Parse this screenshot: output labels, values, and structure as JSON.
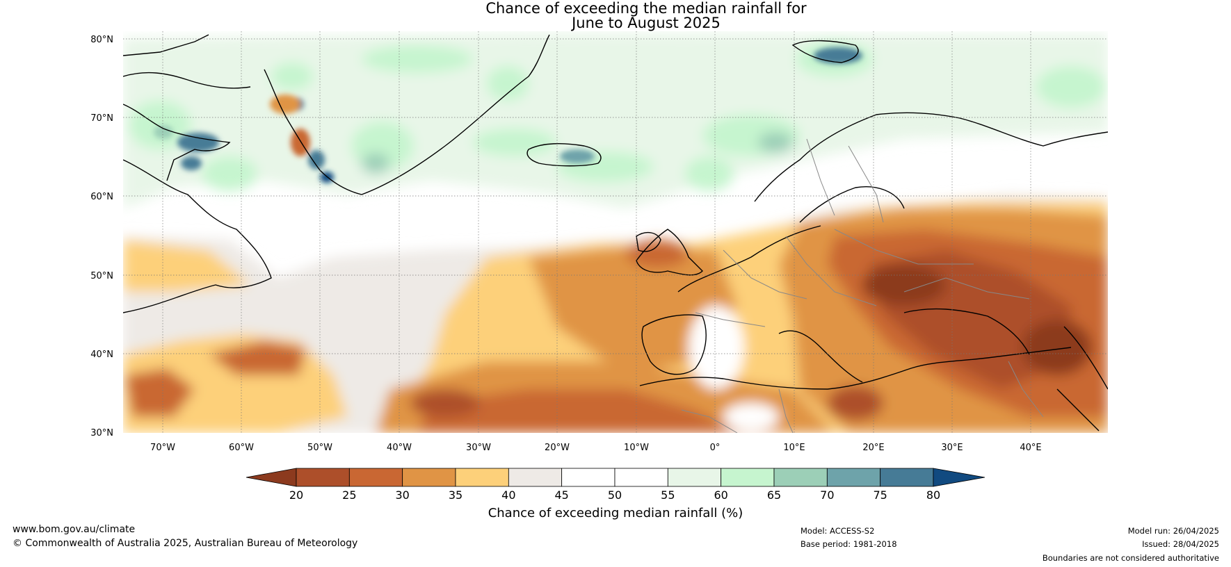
{
  "title": {
    "line1": "Chance of exceeding the median rainfall for",
    "line2": "June to August 2025"
  },
  "map": {
    "lat_labels": [
      "80°N",
      "70°N",
      "60°N",
      "50°N",
      "40°N",
      "30°N"
    ],
    "lon_labels": [
      "70°W",
      "60°W",
      "50°W",
      "40°W",
      "30°W",
      "20°W",
      "10°W",
      "0°",
      "10°E",
      "20°E",
      "30°E",
      "40°E"
    ],
    "extent": {
      "lon": [
        -75,
        50
      ],
      "lat": [
        30,
        81
      ]
    }
  },
  "colorbar": {
    "label": "Chance of exceeding median rainfall (%)",
    "ticks": [
      "20",
      "25",
      "30",
      "35",
      "40",
      "45",
      "50",
      "55",
      "60",
      "65",
      "70",
      "75",
      "80"
    ],
    "colors": [
      "#8c3a1e",
      "#ad4f2a",
      "#c96733",
      "#e09445",
      "#fdd07a",
      "#eeeae6",
      "#ffffff",
      "#ffffff",
      "#e8f6e8",
      "#c6f5cf",
      "#9ccfb7",
      "#6ea3aa",
      "#467b96",
      "#114a80"
    ]
  },
  "footer": {
    "website": "www.bom.gov.au/climate",
    "copyright": "© Commonwealth of Australia 2025, Australian Bureau of Meteorology",
    "model": "Model: ACCESS-S2",
    "base_period": "Base period: 1981-2018",
    "model_run": "Model run: 26/04/2025",
    "issued": "Issued: 28/04/2025",
    "disclaimer": "Boundaries are not considered authoritative"
  }
}
